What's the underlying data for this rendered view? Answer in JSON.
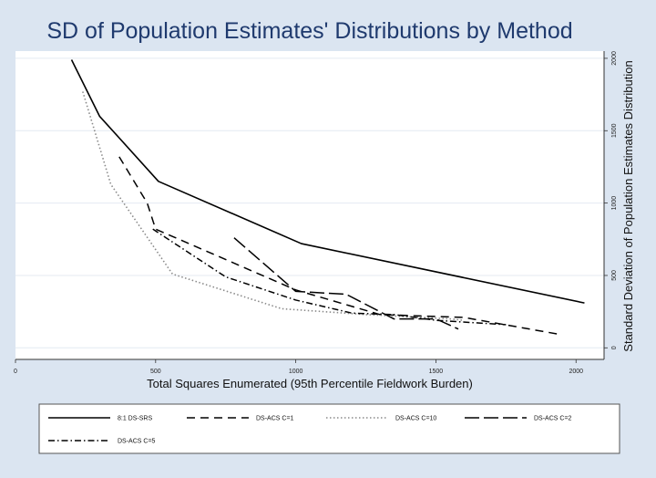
{
  "chart_data": {
    "type": "line",
    "title": "SD of Population Estimates' Distributions by Method",
    "xlabel": "Total Squares Enumerated  (95th Percentile Fieldwork Burden)",
    "ylabel": "Standard Deviation of Population Estimates Distribution",
    "xlim": [
      0,
      2100
    ],
    "ylim": [
      -80,
      2050
    ],
    "xticks": [
      0,
      500,
      1000,
      1500,
      2000
    ],
    "yticks": [
      0,
      500,
      1000,
      1500,
      2000
    ],
    "x_tick_labels": [
      "0",
      "500",
      "1000",
      "1500",
      "2000"
    ],
    "y_tick_labels": [
      "0",
      "500",
      "1000",
      "1500",
      "2000"
    ],
    "grid": "horizontal",
    "legend_position": "bottom",
    "series": [
      {
        "name": "8:1 DS-SRS",
        "style": "solid",
        "x": [
          200,
          300,
          510,
          1020,
          2030
        ],
        "y": [
          1990,
          1600,
          1150,
          720,
          310
        ]
      },
      {
        "name": "DS-ACS C=1",
        "style": "dashed",
        "x": [
          370,
          470,
          500,
          1000,
          1300,
          1600,
          1950
        ],
        "y": [
          1320,
          1000,
          820,
          400,
          230,
          210,
          90
        ]
      },
      {
        "name": "DS-ACS C=10",
        "style": "dotted",
        "x": [
          240,
          340,
          560,
          950,
          1250,
          1550,
          1600
        ],
        "y": [
          1770,
          1130,
          510,
          270,
          230,
          200,
          190
        ]
      },
      {
        "name": "DS-ACS C=2",
        "style": "longdash",
        "x": [
          780,
          1000,
          1180,
          1350,
          1500,
          1580
        ],
        "y": [
          760,
          390,
          370,
          200,
          200,
          130
        ]
      },
      {
        "name": "DS-ACS C=5",
        "style": "dashdot",
        "x": [
          490,
          750,
          1000,
          1200,
          1350,
          1500,
          1750
        ],
        "y": [
          820,
          490,
          330,
          240,
          230,
          190,
          160
        ]
      }
    ]
  }
}
